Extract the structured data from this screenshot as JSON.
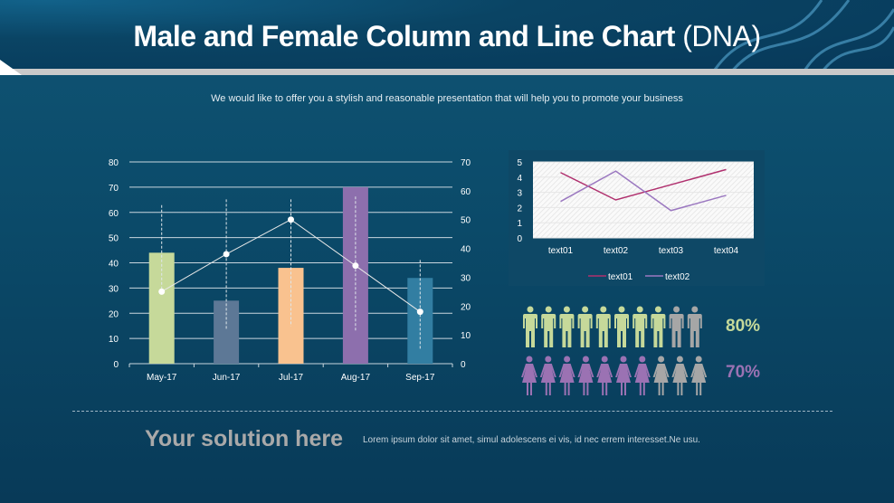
{
  "header": {
    "title_main": "Male and Female Column and Line Chart",
    "title_suffix": "(DNA)",
    "subtitle": "We would like to offer you a stylish and reasonable presentation that will help you to promote your business"
  },
  "chart_data": [
    {
      "type": "bar+line",
      "categories": [
        "May-17",
        "Jun-17",
        "Jul-17",
        "Aug-17",
        "Sep-17"
      ],
      "bars": {
        "values": [
          44,
          25,
          38,
          70,
          34
        ],
        "colors": [
          "#c6d99a",
          "#5d7896",
          "#f9c28f",
          "#8d6fad",
          "#327ea2"
        ],
        "axis": "left"
      },
      "line": {
        "values": [
          25,
          38,
          50,
          34,
          18
        ],
        "color": "#e8e8e8",
        "axis": "right"
      },
      "error_ranges": [
        [
          25,
          55
        ],
        [
          12,
          57
        ],
        [
          13,
          57
        ],
        [
          11,
          58
        ],
        [
          5,
          36
        ]
      ],
      "left_axis": {
        "ylim": [
          0,
          80
        ],
        "ticks": [
          "0",
          "10",
          "20",
          "30",
          "40",
          "50",
          "60",
          "70",
          "80"
        ]
      },
      "right_axis": {
        "ylim": [
          0,
          70
        ],
        "ticks": [
          "0",
          "10",
          "20",
          "30",
          "40",
          "50",
          "60",
          "70"
        ]
      },
      "grid": true
    },
    {
      "type": "line",
      "categories": [
        "text01",
        "text02",
        "text03",
        "text04"
      ],
      "series": [
        {
          "name": "text01",
          "values": [
            4.3,
            2.5,
            3.5,
            4.5
          ],
          "color": "#b0306e"
        },
        {
          "name": "text02",
          "values": [
            2.4,
            4.4,
            1.8,
            2.8
          ],
          "color": "#9b78c0"
        }
      ],
      "ylim": [
        0,
        5
      ],
      "yticks": [
        "0",
        "1",
        "2",
        "3",
        "4",
        "5"
      ],
      "grid": true,
      "legend": "bottom"
    }
  ],
  "infographic": {
    "male": {
      "percent_label": "80%",
      "filled": 8,
      "total": 10,
      "color": "#c6d99a",
      "empty_color": "#a6a6a6"
    },
    "female": {
      "percent_label": "70%",
      "filled": 7,
      "total": 10,
      "color": "#9b72b3",
      "empty_color": "#a6a6a6"
    }
  },
  "footer": {
    "heading": "Your solution here",
    "body": "Lorem ipsum dolor sit amet, simul adolescens ei vis, id nec errem interesset.Ne usu."
  }
}
